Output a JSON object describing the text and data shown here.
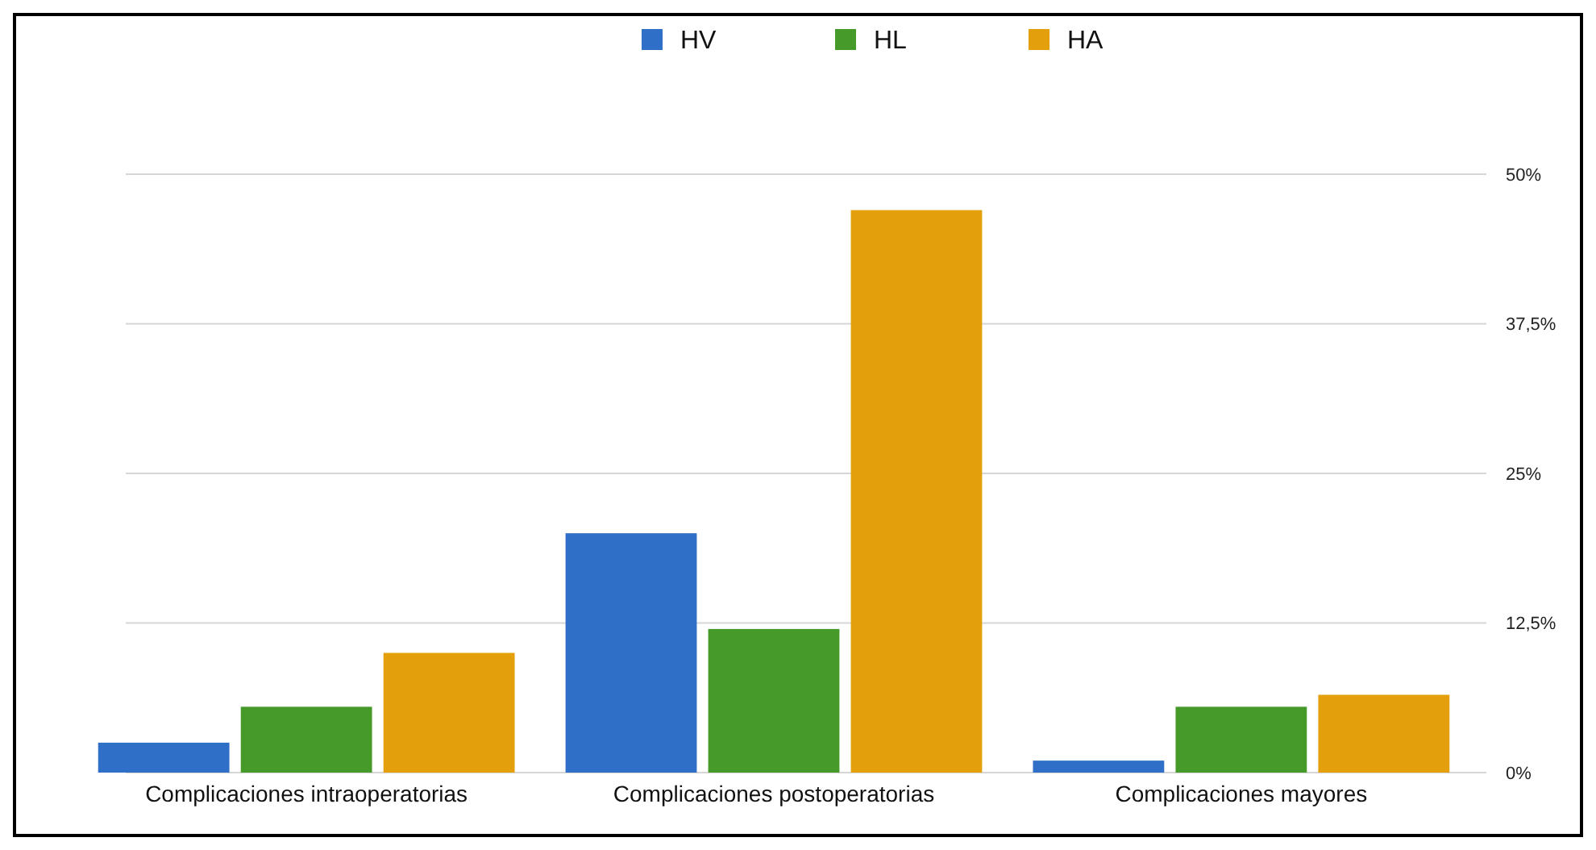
{
  "chart_data": {
    "type": "bar",
    "categories": [
      "Complicaciones intraoperatorias",
      "Complicaciones postoperatorias",
      "Complicaciones mayores"
    ],
    "series": [
      {
        "name": "HV",
        "color": "#2f6fc8",
        "values": [
          2.5,
          20,
          1
        ]
      },
      {
        "name": "HL",
        "color": "#459a2a",
        "values": [
          5.5,
          12,
          5.5
        ]
      },
      {
        "name": "HA",
        "color": "#e3a00c",
        "values": [
          10,
          47,
          6.5
        ]
      }
    ],
    "ylim": [
      0,
      50
    ],
    "yticks": [
      {
        "value": 0,
        "label": "0%"
      },
      {
        "value": 12.5,
        "label": "12,5%"
      },
      {
        "value": 25,
        "label": "25%"
      },
      {
        "value": 37.5,
        "label": "37,5%"
      },
      {
        "value": 50,
        "label": "50%"
      }
    ],
    "grid": "y",
    "legend": "top"
  }
}
